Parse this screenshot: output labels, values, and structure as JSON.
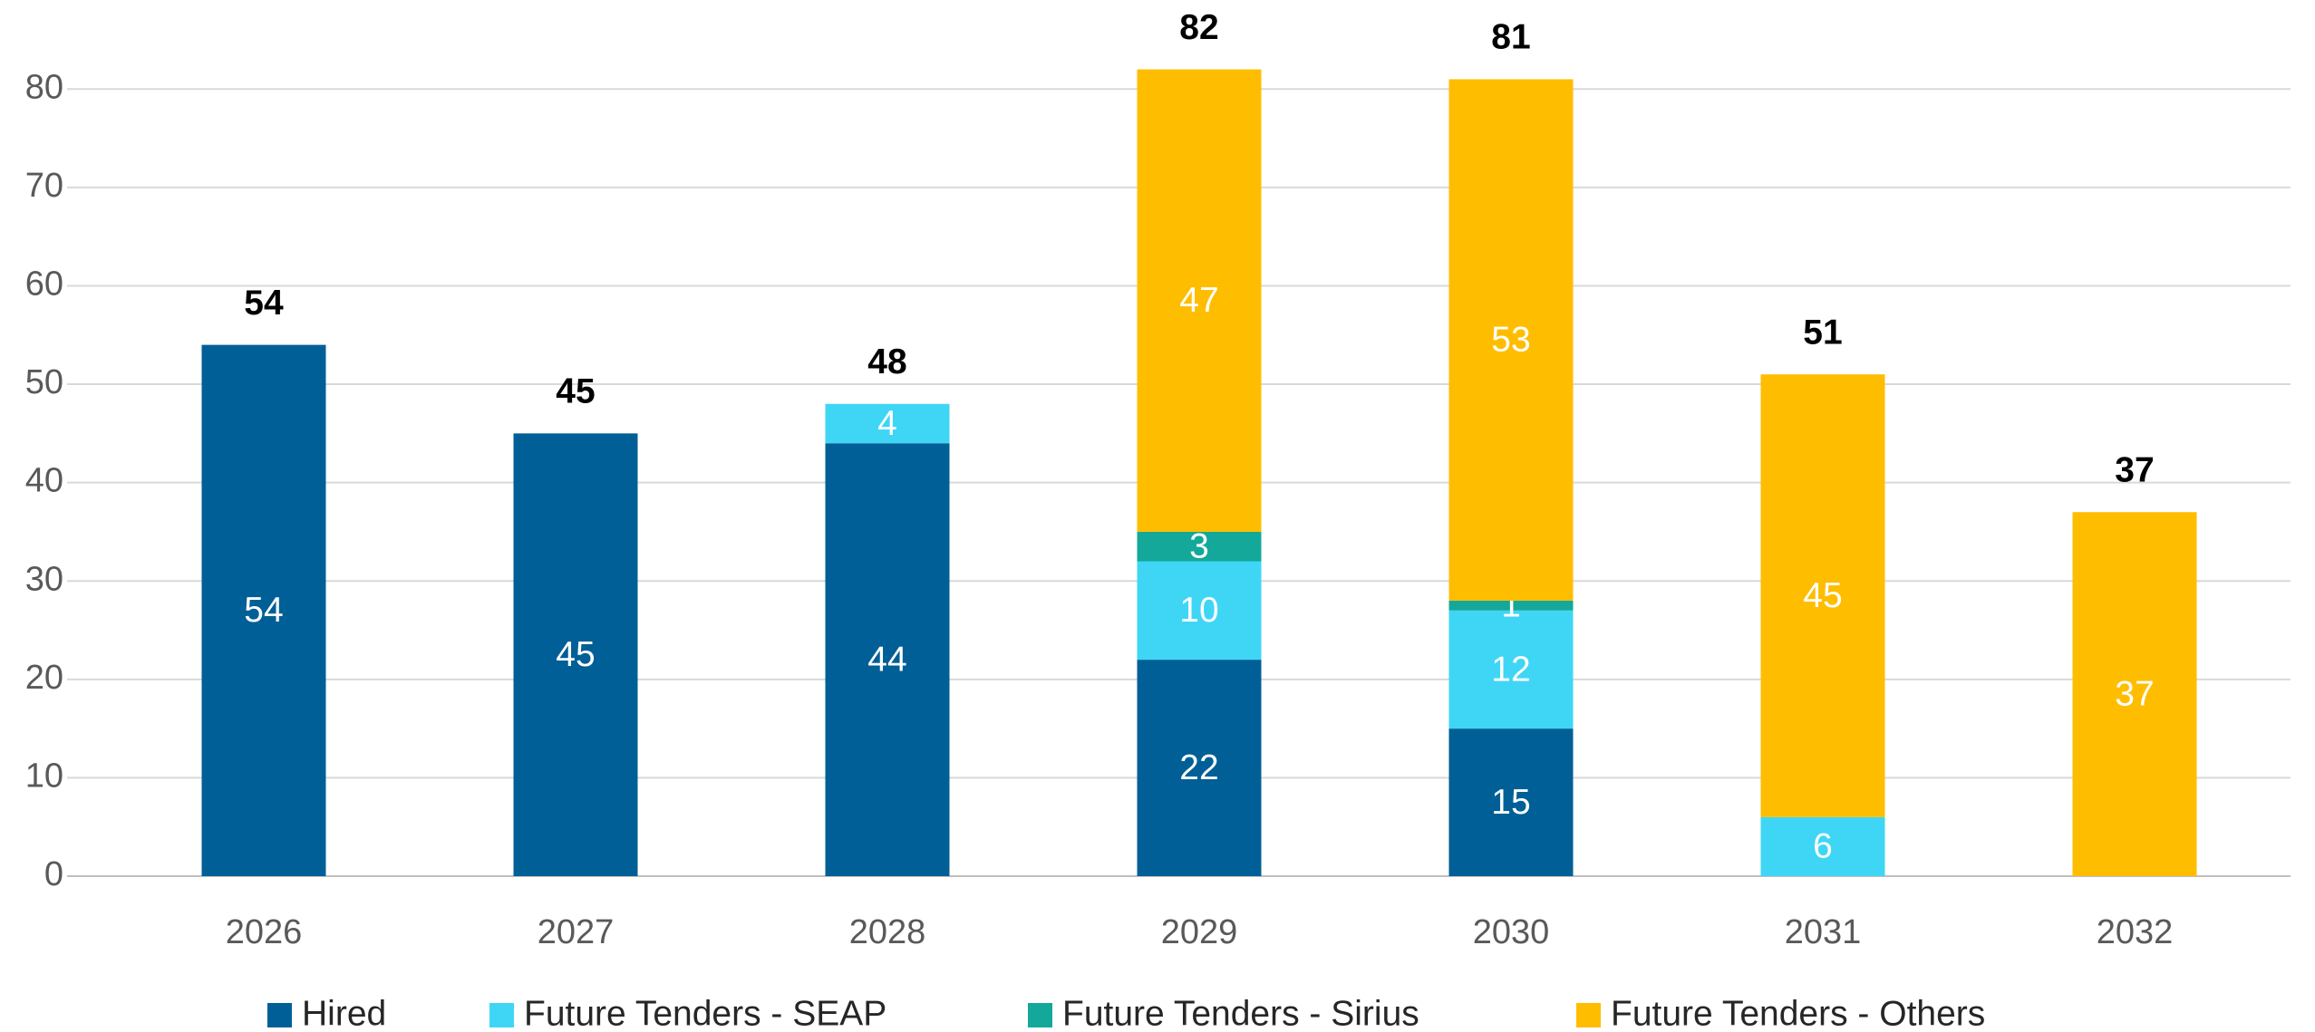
{
  "chart_data": {
    "type": "stacked_bar",
    "categories": [
      "2026",
      "2027",
      "2028",
      "2029",
      "2030",
      "2031",
      "2032"
    ],
    "series": [
      {
        "name": "Hired",
        "color": "#005f96",
        "values": [
          54,
          45,
          44,
          22,
          15,
          null,
          null
        ]
      },
      {
        "name": "Future Tenders - SEAP",
        "color": "#3fd6f5",
        "values": [
          null,
          null,
          4,
          10,
          12,
          6,
          null
        ]
      },
      {
        "name": "Future Tenders - Sirius",
        "color": "#13a89a",
        "values": [
          null,
          null,
          null,
          3,
          1,
          null,
          null
        ]
      },
      {
        "name": "Future Tenders - Others",
        "color": "#ffbd00",
        "values": [
          null,
          null,
          null,
          47,
          53,
          45,
          37
        ]
      }
    ],
    "totals": [
      54,
      45,
      48,
      82,
      81,
      51,
      37
    ],
    "ylim": [
      0,
      85
    ],
    "yticks": [
      0,
      10,
      20,
      30,
      40,
      50,
      60,
      70,
      80
    ],
    "grid": true
  }
}
